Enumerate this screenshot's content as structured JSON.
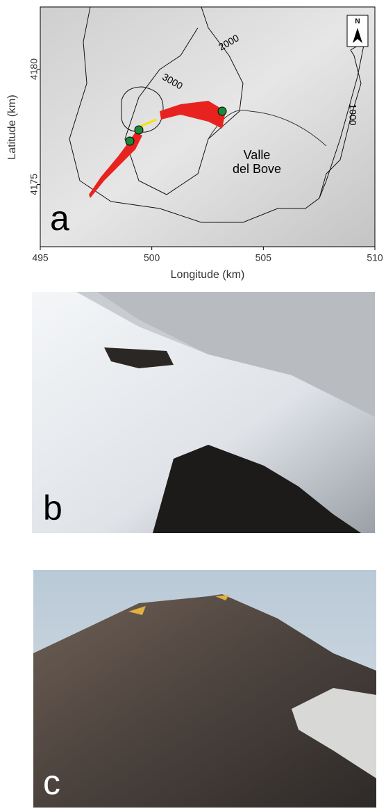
{
  "panel_a": {
    "label": "a",
    "xlabel": "Longitude (km)",
    "ylabel": "Latitude (km)",
    "xlim": [
      495,
      510
    ],
    "ylim": [
      4172.3,
      4182.7
    ],
    "xticks": [
      495,
      500,
      505,
      510
    ],
    "yticks": [
      4175,
      4180
    ],
    "contour_labels": [
      "3000",
      "2000",
      "1000"
    ],
    "place_label": [
      "Valle",
      "del Bove"
    ],
    "north": "N"
  },
  "panel_b": {
    "label": "b"
  },
  "panel_c": {
    "label": "c"
  }
}
